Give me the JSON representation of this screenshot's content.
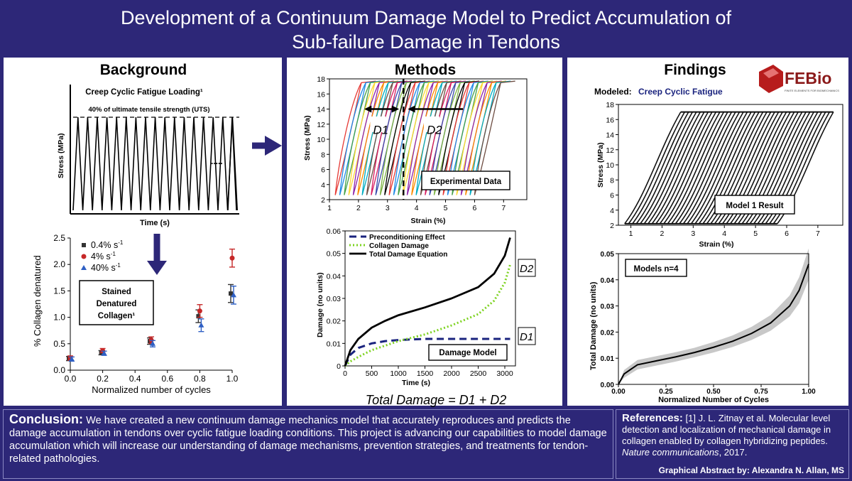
{
  "header": {
    "title_line1": "Development of a Continuum Damage Model to Predict Accumulation of",
    "title_line2": "Sub-failure Damage in Tendons"
  },
  "background": {
    "title": "Background",
    "creep_title": "Creep Cyclic Fatigue Loading¹",
    "uts_label": "40% of ultimate tensile strength (UTS)",
    "ellipsis": ".....",
    "ylabel": "Stress (MPa)",
    "xlabel": "Time (s)",
    "stain_box": [
      "Stained",
      "Denatured",
      "Collagen¹"
    ]
  },
  "methods": {
    "title": "Methods",
    "exp_label": "Experimental Data",
    "d1": "D1",
    "d2": "D2",
    "damage_box": "Damage Model",
    "equation": "Total Damage = D1 + D2"
  },
  "findings": {
    "title": "Findings",
    "logo_text": "FEBio",
    "logo_sub": "FINITE ELEMENTS FOR BIOMECHANICS",
    "modeled_label": "Modeled:",
    "modeled_value": "Creep Cyclic Fatigue",
    "model_result": "Model 1 Result",
    "models_n": "Models n=4"
  },
  "chart_data": [
    {
      "type": "line",
      "title": "Creep Cyclic Fatigue Loading¹",
      "xlabel": "Time (s)",
      "ylabel": "Stress (MPa)",
      "annotation": "40% of ultimate tensile strength (UTS)",
      "description": "sawtooth cyclic loading"
    },
    {
      "type": "scatter",
      "xlabel": "Normalized number of cycles",
      "ylabel": "% Collagen denatured",
      "xlim": [
        0,
        1
      ],
      "ylim": [
        0,
        2.5
      ],
      "xticks": [
        "0.0",
        "0.2",
        "0.4",
        "0.6",
        "0.8",
        "1.0"
      ],
      "yticks": [
        "0.0",
        "0.5",
        "1.0",
        "1.5",
        "2.0",
        "2.5"
      ],
      "x": [
        0.0,
        0.2,
        0.5,
        0.8,
        1.0
      ],
      "series": [
        {
          "name": "0.4% s⁻¹",
          "color": "#333333",
          "marker": "square",
          "values": [
            0.22,
            0.33,
            0.55,
            1.02,
            1.45
          ]
        },
        {
          "name": "4% s⁻¹",
          "color": "#c62828",
          "marker": "circle",
          "values": [
            0.23,
            0.37,
            0.57,
            1.12,
            2.12
          ]
        },
        {
          "name": "40% s⁻¹",
          "color": "#2e5fc4",
          "marker": "triangle",
          "values": [
            0.21,
            0.32,
            0.5,
            0.85,
            1.42
          ]
        }
      ],
      "errors": [
        0.04,
        0.04,
        0.06,
        0.12,
        0.17
      ],
      "legend_labels": [
        "0.4% s",
        "4% s",
        "40% s"
      ],
      "legend_sup": "-1"
    },
    {
      "type": "line",
      "title": "Experimental Data",
      "xlabel": "Strain (%)",
      "ylabel": "Stress (MPa)",
      "xlim": [
        1,
        7.8
      ],
      "ylim": [
        2,
        18
      ],
      "xticks": [
        "1",
        "2",
        "3",
        "4",
        "5",
        "6",
        "7"
      ],
      "yticks": [
        "2",
        "4",
        "6",
        "8",
        "10",
        "12",
        "14",
        "16",
        "18"
      ],
      "cycles": 32,
      "peak_stress": 17.5,
      "valley_stress": 2.6,
      "start_strain": 1.2,
      "end_strain": 7.4
    },
    {
      "type": "line",
      "xlabel": "Time (s)",
      "ylabel": "Damage (no units)",
      "xlim": [
        0,
        3200
      ],
      "ylim": [
        0,
        0.06
      ],
      "xticks": [
        "0",
        "500",
        "1000",
        "1500",
        "2000",
        "2500",
        "3000"
      ],
      "yticks": [
        "0",
        "0.01",
        "0.02",
        "0.03",
        "0.04",
        "0.05",
        "0.06"
      ],
      "x": [
        0,
        100,
        250,
        500,
        750,
        1000,
        1500,
        2000,
        2500,
        2800,
        3000,
        3100
      ],
      "series": [
        {
          "name": "Preconditioning Effect",
          "values": [
            0,
            0.005,
            0.008,
            0.01,
            0.011,
            0.0115,
            0.012,
            0.012,
            0.012,
            0.012,
            0.012,
            0.012
          ]
        },
        {
          "name": "Collagen Damage",
          "values": [
            0,
            0.002,
            0.004,
            0.007,
            0.009,
            0.011,
            0.014,
            0.018,
            0.023,
            0.029,
            0.037,
            0.045
          ]
        },
        {
          "name": "Total Damage Equation",
          "values": [
            0,
            0.007,
            0.012,
            0.017,
            0.02,
            0.0225,
            0.026,
            0.03,
            0.035,
            0.041,
            0.049,
            0.057
          ]
        }
      ]
    },
    {
      "type": "line",
      "title": "Model 1 Result",
      "xlabel": "Strain (%)",
      "ylabel": "Stress (MPa)",
      "xlim": [
        0.6,
        7.8
      ],
      "ylim": [
        2,
        18
      ],
      "xticks": [
        "1",
        "2",
        "3",
        "4",
        "5",
        "6",
        "7"
      ],
      "yticks": [
        "2",
        "4",
        "6",
        "8",
        "10",
        "12",
        "14",
        "16",
        "18"
      ],
      "cycles": 40,
      "peak_stress": 17,
      "valley_stress": 2.2,
      "start_strain": 0.8,
      "end_strain": 7.5
    },
    {
      "type": "area",
      "title": "Models n=4",
      "xlabel": "Normalized Number of Cycles",
      "ylabel": "Total Damage (no units)",
      "xlim": [
        0,
        1
      ],
      "ylim": [
        0,
        0.05
      ],
      "xticks": [
        "0.00",
        "0.25",
        "0.50",
        "0.75",
        "1.00"
      ],
      "yticks": [
        "0.00",
        "0.01",
        "0.02",
        "0.03",
        "0.04",
        "0.05"
      ],
      "x": [
        0,
        0.03,
        0.1,
        0.2,
        0.3,
        0.4,
        0.5,
        0.6,
        0.7,
        0.8,
        0.9,
        0.95,
        1.0
      ],
      "mean": [
        0,
        0.004,
        0.0075,
        0.009,
        0.0105,
        0.0122,
        0.0142,
        0.0165,
        0.0195,
        0.0235,
        0.03,
        0.036,
        0.046
      ],
      "band": [
        0,
        0.0015,
        0.0018,
        0.0018,
        0.0018,
        0.0018,
        0.002,
        0.0022,
        0.0025,
        0.003,
        0.004,
        0.005,
        0.006
      ]
    }
  ],
  "conclusion": {
    "label": "Conclusion:",
    "text": "We have created a new continuum damage mechanics model that accurately reproduces and predicts the damage accumulation in tendons over cyclic fatigue loading conditions.  This project is advancing our capabilities to model damage accumulation which will increase our understanding of damage mechanisms, prevention strategies, and treatments for tendon-related pathologies."
  },
  "references": {
    "label": "References:",
    "text": "[1] J. L. Zitnay et al. Molecular level detection and localization of mechanical damage in collagen enabled by collagen hybridizing peptides.",
    "journal": "Nature communications",
    "year": ", 2017.",
    "author": "Graphical Abstract by: Alexandra N. Allan, MS"
  }
}
